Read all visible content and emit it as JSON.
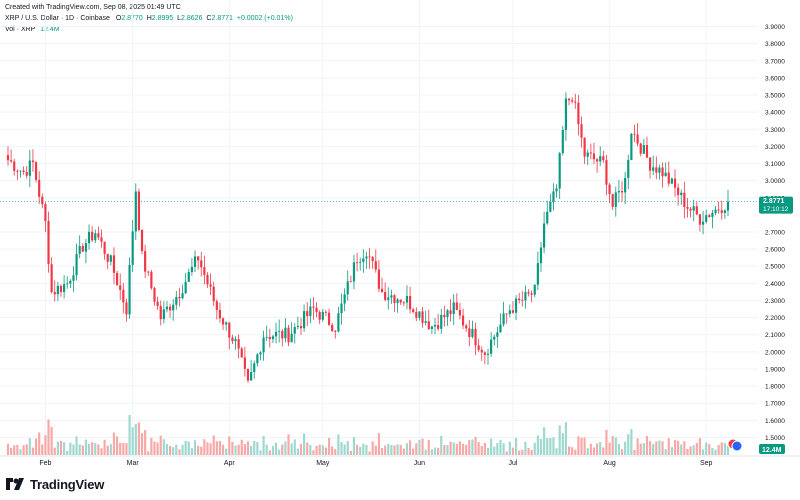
{
  "header": {
    "created": "Created with TradingView.com, Sep 08, 2025 01:49 UTC",
    "symbol": "XRP / U.S. Dollar · 1D · Coinbase",
    "ohlc": [
      {
        "label": "O",
        "value": "2.8770"
      },
      {
        "label": "H",
        "value": "2.8995"
      },
      {
        "label": "L",
        "value": "2.8626"
      },
      {
        "label": "C",
        "value": "2.8771"
      }
    ],
    "change": "+0.0002 (+0.01%)",
    "volume_label": "Vol · XRP",
    "volume_value": "12.4M"
  },
  "price_tag": {
    "price": "2.8771",
    "countdown": "17:10:12"
  },
  "volume_tag": "12.4M",
  "footer": {
    "brand": "TradingView"
  },
  "colors": {
    "up": "#089981",
    "down": "#f23645",
    "up_vol": "#9fd8cf",
    "down_vol": "#f7a9a7",
    "grid": "#f0f3fa",
    "text": "#131722"
  },
  "chart_data": {
    "type": "candlestick",
    "title": "XRP / U.S. Dollar · 1D · Coinbase",
    "y_axis": {
      "range": [
        1.45,
        3.95
      ],
      "ticks": [
        "3.9000",
        "3.8000",
        "3.7000",
        "3.6000",
        "3.5000",
        "3.4000",
        "3.3000",
        "3.2000",
        "3.1000",
        "3.0000",
        "2.9000",
        "2.7000",
        "2.6000",
        "2.5000",
        "2.4000",
        "2.3000",
        "2.2000",
        "2.1000",
        "2.0000",
        "1.9000",
        "1.8000",
        "1.7000",
        "1.6000",
        "1.5000"
      ]
    },
    "x_axis": {
      "start": "2025-01-20",
      "end": "2025-09-08",
      "labels": [
        {
          "text": "Feb",
          "date": "2025-02-01"
        },
        {
          "text": "Mar",
          "date": "2025-03-01"
        },
        {
          "text": "Apr",
          "date": "2025-04-01"
        },
        {
          "text": "May",
          "date": "2025-05-01"
        },
        {
          "text": "Jun",
          "date": "2025-06-01"
        },
        {
          "text": "Jul",
          "date": "2025-07-01"
        },
        {
          "text": "Aug",
          "date": "2025-08-01"
        },
        {
          "text": "Sep",
          "date": "2025-09-01"
        }
      ]
    },
    "last_price": 2.8771,
    "closes": [
      {
        "date": "2025-01-20",
        "close": 3.12
      },
      {
        "date": "2025-01-25",
        "close": 3.05
      },
      {
        "date": "2025-01-28",
        "close": 3.1
      },
      {
        "date": "2025-02-01",
        "close": 2.75
      },
      {
        "date": "2025-02-03",
        "close": 2.35
      },
      {
        "date": "2025-02-08",
        "close": 2.4
      },
      {
        "date": "2025-02-13",
        "close": 2.62
      },
      {
        "date": "2025-02-17",
        "close": 2.7
      },
      {
        "date": "2025-02-22",
        "close": 2.52
      },
      {
        "date": "2025-02-27",
        "close": 2.25
      },
      {
        "date": "2025-03-02",
        "close": 2.95
      },
      {
        "date": "2025-03-04",
        "close": 2.55
      },
      {
        "date": "2025-03-10",
        "close": 2.2
      },
      {
        "date": "2025-03-16",
        "close": 2.35
      },
      {
        "date": "2025-03-22",
        "close": 2.55
      },
      {
        "date": "2025-03-28",
        "close": 2.25
      },
      {
        "date": "2025-04-03",
        "close": 2.05
      },
      {
        "date": "2025-04-07",
        "close": 1.8
      },
      {
        "date": "2025-04-12",
        "close": 2.1
      },
      {
        "date": "2025-04-20",
        "close": 2.1
      },
      {
        "date": "2025-04-28",
        "close": 2.25
      },
      {
        "date": "2025-05-05",
        "close": 2.15
      },
      {
        "date": "2025-05-12",
        "close": 2.55
      },
      {
        "date": "2025-05-15",
        "close": 2.6
      },
      {
        "date": "2025-05-20",
        "close": 2.35
      },
      {
        "date": "2025-05-28",
        "close": 2.3
      },
      {
        "date": "2025-06-05",
        "close": 2.15
      },
      {
        "date": "2025-06-12",
        "close": 2.25
      },
      {
        "date": "2025-06-22",
        "close": 2.0
      },
      {
        "date": "2025-06-30",
        "close": 2.25
      },
      {
        "date": "2025-07-08",
        "close": 2.35
      },
      {
        "date": "2025-07-11",
        "close": 2.75
      },
      {
        "date": "2025-07-15",
        "close": 2.95
      },
      {
        "date": "2025-07-18",
        "close": 3.45
      },
      {
        "date": "2025-07-20",
        "close": 3.5
      },
      {
        "date": "2025-07-24",
        "close": 3.15
      },
      {
        "date": "2025-07-30",
        "close": 3.1
      },
      {
        "date": "2025-08-02",
        "close": 2.85
      },
      {
        "date": "2025-08-06",
        "close": 3.0
      },
      {
        "date": "2025-08-08",
        "close": 3.3
      },
      {
        "date": "2025-08-14",
        "close": 3.1
      },
      {
        "date": "2025-08-18",
        "close": 3.05
      },
      {
        "date": "2025-08-22",
        "close": 2.95
      },
      {
        "date": "2025-08-26",
        "close": 2.85
      },
      {
        "date": "2025-08-30",
        "close": 2.78
      },
      {
        "date": "2025-09-04",
        "close": 2.83
      },
      {
        "date": "2025-09-08",
        "close": 2.8771
      }
    ]
  }
}
